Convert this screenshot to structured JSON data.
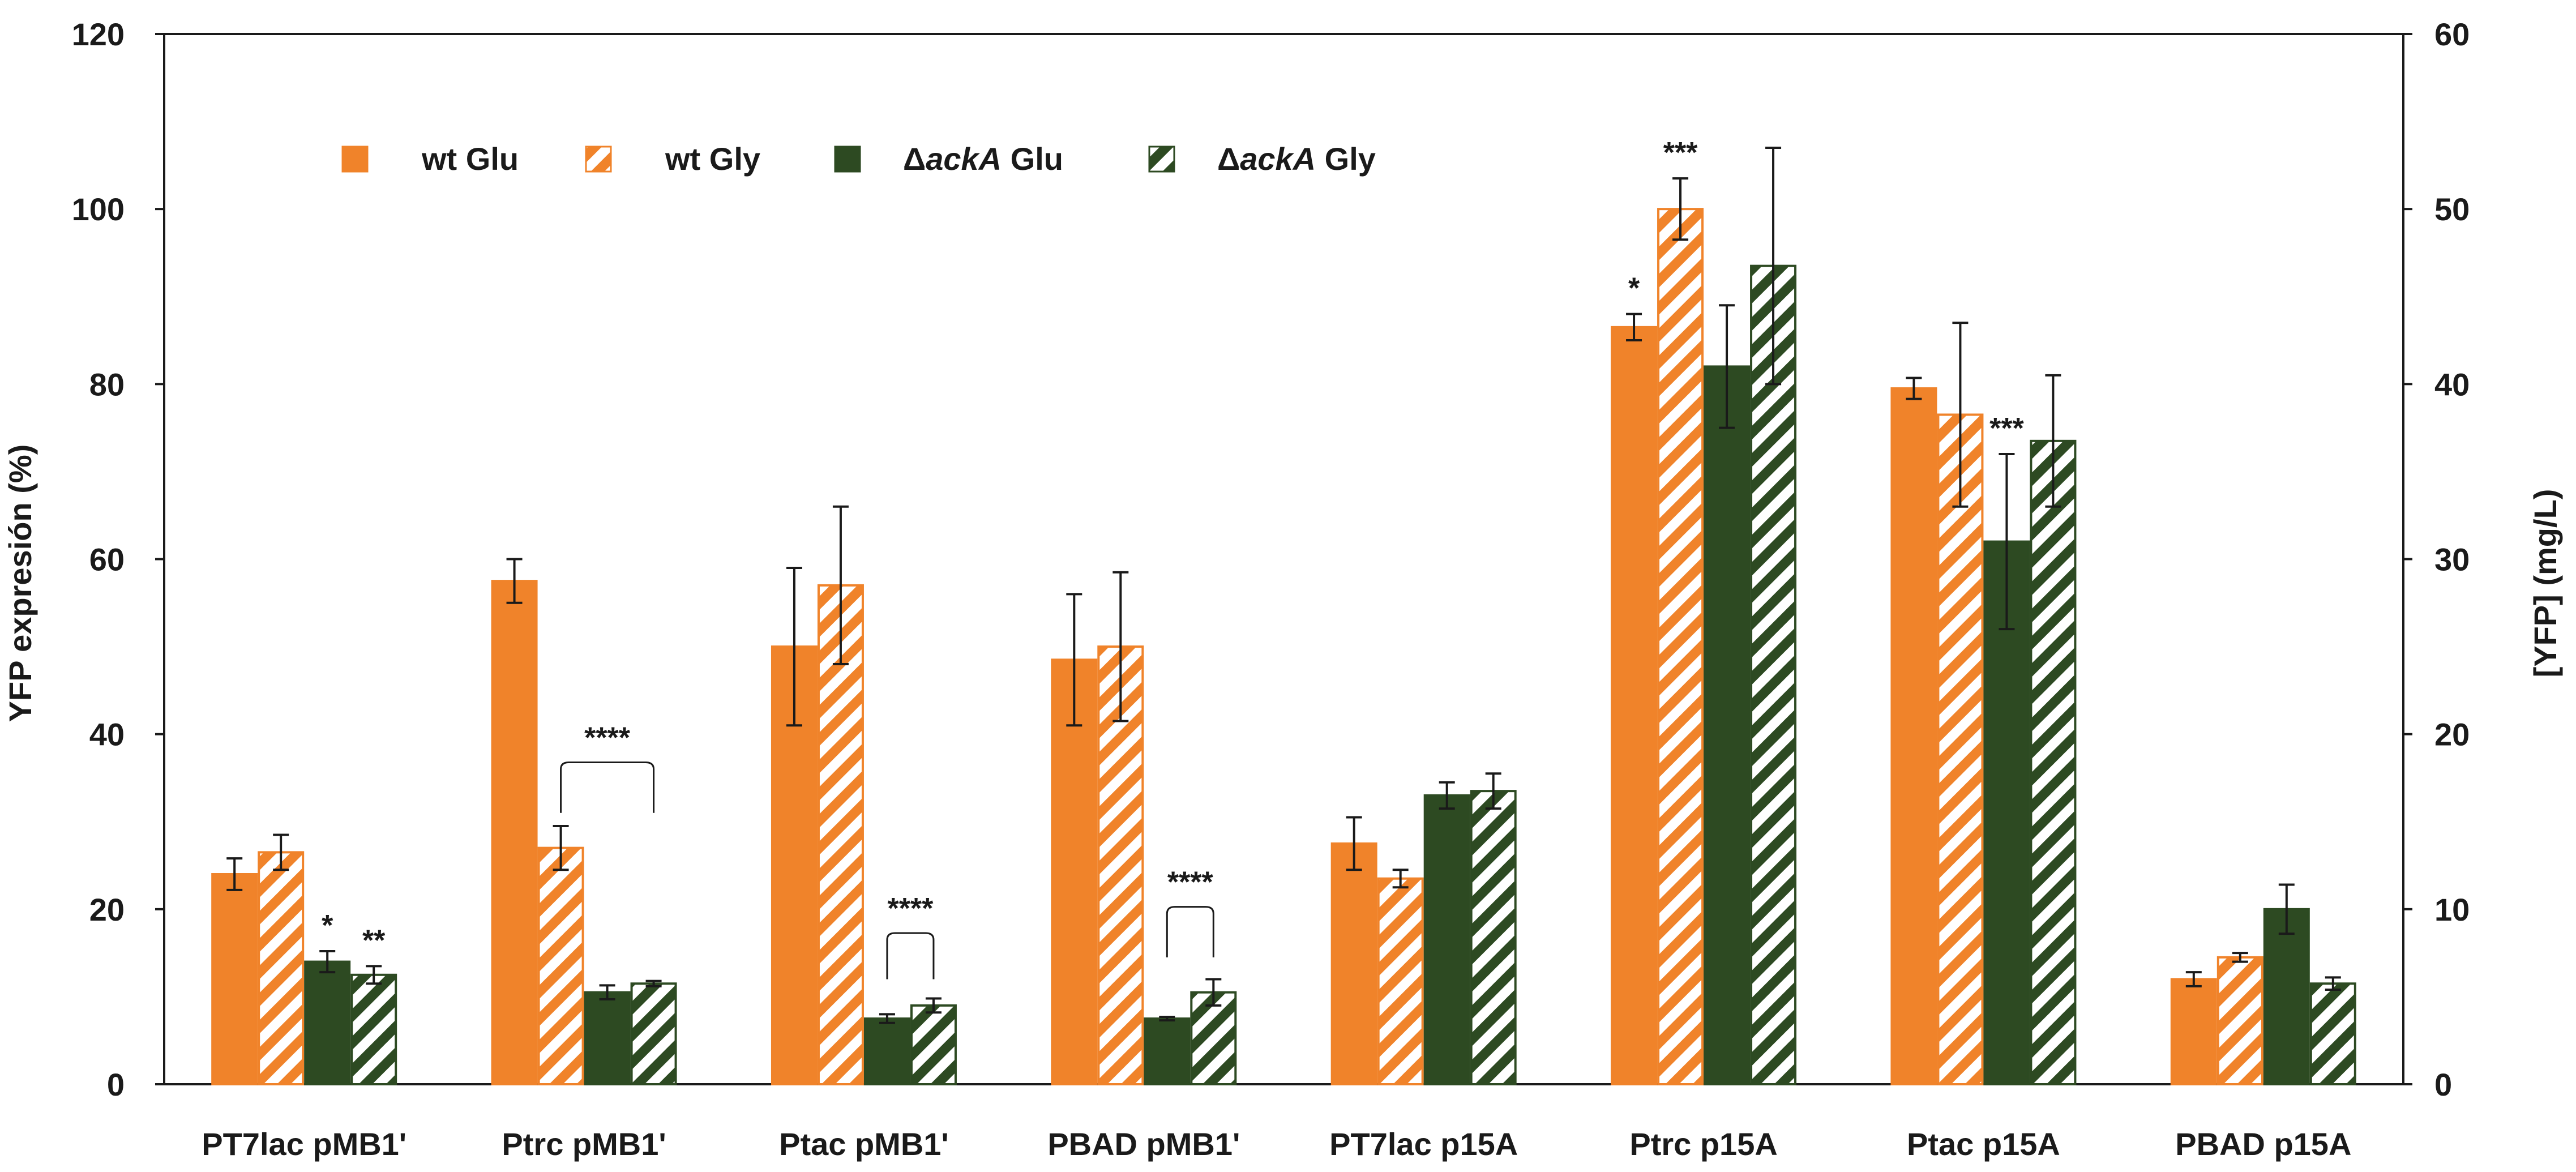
{
  "chart_data": {
    "type": "bar",
    "title": "",
    "ylabel": "YFP expresión (%)",
    "ylabel_right": "[YFP] (mg/L)",
    "xlabel": "",
    "ylim": [
      0,
      120
    ],
    "ylim_right": [
      0,
      60
    ],
    "yticks": [
      0,
      20,
      40,
      60,
      80,
      100,
      120
    ],
    "yticks_right": [
      0,
      10,
      20,
      30,
      40,
      50,
      60
    ],
    "grid": false,
    "legend_position": "top-left",
    "categories": [
      "PT7lac pMB1'",
      "Ptrc pMB1'",
      "Ptac pMB1'",
      "PBAD pMB1'",
      "PT7lac p15A",
      "Ptrc p15A",
      "Ptac p15A",
      "PBAD p15A"
    ],
    "series": [
      {
        "name": "wt Glu",
        "legend_prefix": "",
        "legend_italic": "",
        "legend_suffix": "wt Glu",
        "color": "#f0832a",
        "pattern": "solid",
        "values": [
          24,
          57.5,
          50,
          48.5,
          27.5,
          86.5,
          79.5,
          12
        ],
        "errors": [
          1.8,
          2.5,
          9,
          7.5,
          3,
          1.5,
          1.2,
          0.8
        ]
      },
      {
        "name": "wt Gly",
        "legend_prefix": "",
        "legend_italic": "",
        "legend_suffix": "wt Gly",
        "color": "#f0832a",
        "pattern": "hatched",
        "values": [
          26.5,
          27,
          57,
          50,
          23.5,
          100,
          76.5,
          14.5
        ],
        "errors": [
          2,
          2.5,
          9,
          8.5,
          1,
          3.5,
          10.5,
          0.5
        ]
      },
      {
        "name": "ΔackA Glu",
        "legend_prefix": "Δ",
        "legend_italic": "ackA",
        "legend_suffix": " Glu",
        "color": "#2d4a22",
        "pattern": "solid",
        "values": [
          14,
          10.5,
          7.5,
          7.5,
          33,
          82,
          62,
          20
        ],
        "errors": [
          1.2,
          0.8,
          0.5,
          0.2,
          1.5,
          7,
          10,
          2.8
        ]
      },
      {
        "name": "ΔackA Gly",
        "legend_prefix": "Δ",
        "legend_italic": "ackA",
        "legend_suffix": " Gly",
        "color": "#2d4a22",
        "pattern": "hatched",
        "values": [
          12.5,
          11.5,
          9,
          10.5,
          33.5,
          93.5,
          73.5,
          11.5
        ],
        "errors": [
          1,
          0.3,
          0.8,
          1.5,
          2,
          13.5,
          7.5,
          0.7
        ]
      }
    ],
    "annotations": [
      {
        "text": "*",
        "category": 0,
        "series": 2,
        "kind": "star"
      },
      {
        "text": "**",
        "category": 0,
        "series": 3,
        "kind": "star"
      },
      {
        "text": "****",
        "category": 1,
        "kind": "bracket",
        "from_series": 1,
        "to_series": 3,
        "bracket_y": 36,
        "drop_to": 31
      },
      {
        "text": "****",
        "category": 2,
        "kind": "bracket",
        "from_series": 2,
        "to_series": 3,
        "bracket_y": 16.5,
        "drop_to": 12
      },
      {
        "text": "****",
        "category": 3,
        "kind": "bracket",
        "from_series": 2,
        "to_series": 3,
        "bracket_y": 19.5,
        "drop_to": 14.5
      },
      {
        "text": "*",
        "category": 5,
        "series": 0,
        "kind": "star"
      },
      {
        "text": "***",
        "category": 5,
        "series": 1,
        "kind": "star"
      },
      {
        "text": "***",
        "category": 6,
        "series": 2,
        "kind": "star"
      }
    ]
  }
}
